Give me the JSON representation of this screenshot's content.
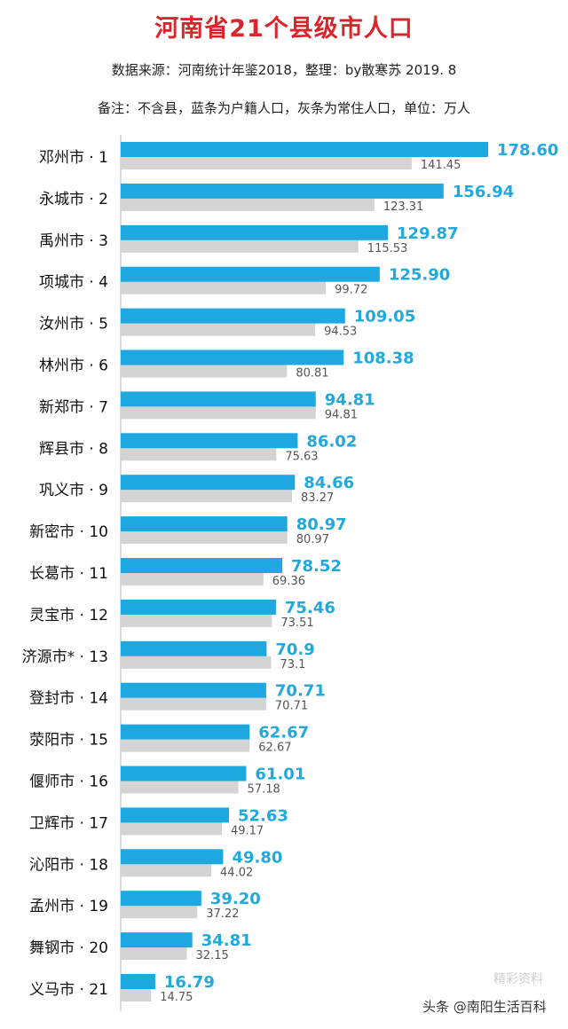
{
  "header": {
    "title": "河南省21个县级市人口",
    "source": "数据来源：河南统计年鉴2018，整理：by散寒苏  2019. 8",
    "note": "备注：不含县，蓝条为户籍人口，灰条为常住人口，单位：万人"
  },
  "watermark": {
    "text": "头条 @南阳生活百科",
    "faint_text": "精彩资料"
  },
  "colors": {
    "registered_bar": "#1fa8e0",
    "resident_bar": "#d4d4d4",
    "title": "#d9262c",
    "value_label": "#22a9db"
  },
  "chart_data": {
    "type": "bar",
    "orientation": "horizontal",
    "categories": [
      "邓州市 · 1",
      "永城市 · 2",
      "禹州市 · 3",
      "项城市 · 4",
      "汝州市 · 5",
      "林州市 · 6",
      "新郑市 · 7",
      "辉县市 · 8",
      "巩义市 · 9",
      "新密市 · 10",
      "长葛市 · 11",
      "灵宝市 · 12",
      "济源市* · 13",
      "登封市 · 14",
      "荥阳市 · 15",
      "偃师市 · 16",
      "卫辉市 · 17",
      "沁阳市 · 18",
      "孟州市 · 19",
      "舞钢市 · 20",
      "义马市 · 21"
    ],
    "series": [
      {
        "name": "户籍人口",
        "values": [
          178.6,
          156.94,
          129.87,
          125.9,
          109.05,
          108.38,
          94.81,
          86.02,
          84.66,
          80.97,
          78.52,
          75.46,
          70.9,
          70.71,
          62.67,
          61.01,
          52.63,
          49.8,
          39.2,
          34.81,
          16.79
        ],
        "labels": [
          "178.60",
          "156.94",
          "129.87",
          "125.90",
          "109.05",
          "108.38",
          "94.81",
          "86.02",
          "84.66",
          "80.97",
          "78.52",
          "75.46",
          "70.9",
          "70.71",
          "62.67",
          "61.01",
          "52.63",
          "49.80",
          "39.20",
          "34.81",
          "16.79"
        ]
      },
      {
        "name": "常住人口",
        "values": [
          141.45,
          123.31,
          115.53,
          99.72,
          94.53,
          80.81,
          94.81,
          75.63,
          83.27,
          80.97,
          69.36,
          73.51,
          73.1,
          70.71,
          62.67,
          57.18,
          49.17,
          44.02,
          37.22,
          32.15,
          14.75
        ],
        "labels": [
          "141.45",
          "123.31",
          "115.53",
          "99.72",
          "94.53",
          "80.81",
          "94.81",
          "75.63",
          "83.27",
          "80.97",
          "69.36",
          "73.51",
          "73.1",
          "70.71",
          "62.67",
          "57.18",
          "49.17",
          "44.02",
          "37.22",
          "32.15",
          "14.75"
        ]
      }
    ],
    "xlim": [
      0,
      178.6
    ],
    "grid": false,
    "legend": "none"
  }
}
